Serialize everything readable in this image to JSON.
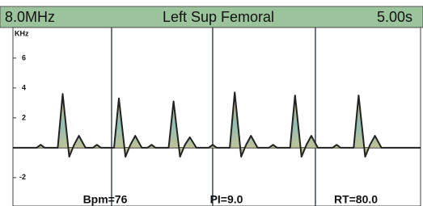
{
  "chart_data": {
    "type": "line",
    "title": "Left Sup Femoral",
    "annotations": [
      "8.0MHz",
      "5.00s",
      "Bpm=76",
      "PI=9.0",
      "RT=80.0"
    ],
    "ylabel": "KHz",
    "xlim": [
      0,
      5
    ],
    "ylim": [
      -3.9,
      8.05
    ],
    "yticks": [
      6,
      4,
      2,
      -2
    ],
    "beat_markers": [
      1.21,
      2.45,
      3.71
    ],
    "x": [
      0,
      0.29,
      0.34,
      0.39,
      0.55,
      0.61,
      0.69,
      0.75,
      0.81,
      0.89,
      0.98,
      1.03,
      1.08,
      1.24,
      1.3,
      1.38,
      1.44,
      1.5,
      1.58,
      1.65,
      1.7,
      1.75,
      1.91,
      1.97,
      2.05,
      2.11,
      2.17,
      2.25,
      2.4,
      2.45,
      2.5,
      2.66,
      2.72,
      2.8,
      2.86,
      2.92,
      3.0,
      3.14,
      3.19,
      3.24,
      3.4,
      3.46,
      3.54,
      3.6,
      3.66,
      3.74,
      3.92,
      3.97,
      4.02,
      4.18,
      4.24,
      4.32,
      4.38,
      4.44,
      4.52,
      5.0
    ],
    "values": [
      0,
      0,
      0.2,
      0,
      0,
      3.6,
      -0.6,
      0.2,
      0.8,
      0,
      0,
      0.2,
      0,
      0,
      3.3,
      -0.6,
      0.2,
      0.8,
      0,
      0,
      0.2,
      0,
      0,
      3.1,
      -0.6,
      0.2,
      0.7,
      0,
      0,
      0.2,
      0,
      0,
      3.7,
      -0.6,
      0.2,
      0.8,
      0,
      0,
      0.2,
      0,
      0,
      3.5,
      -0.6,
      0.2,
      0.8,
      0,
      0,
      0.2,
      0,
      0,
      3.5,
      -0.6,
      0.2,
      0.8,
      0,
      0
    ],
    "color": "#222222",
    "fill_color": "#c8b978",
    "header_color": "#9cc49c",
    "marker_color": "#3a4a55"
  }
}
